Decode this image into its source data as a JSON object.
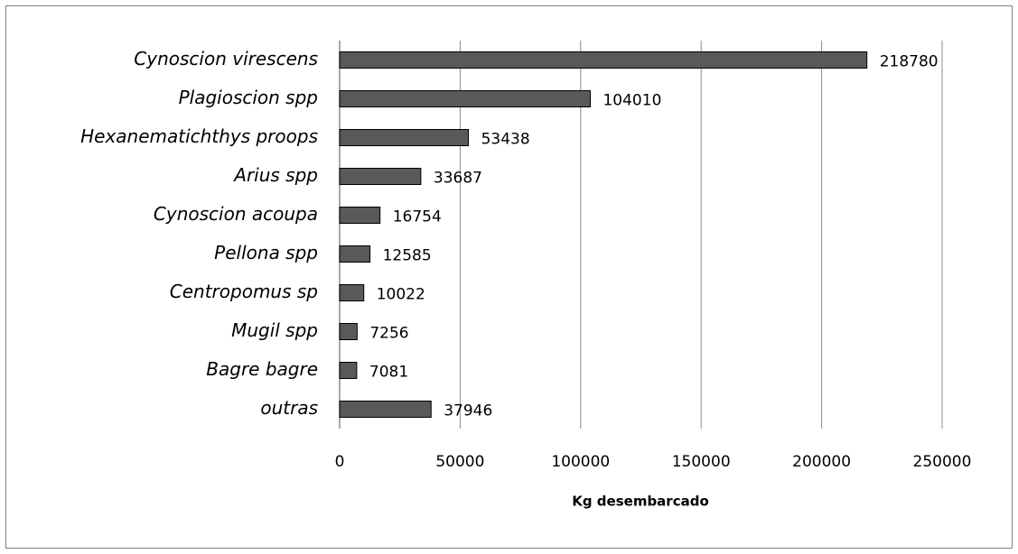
{
  "chart_data": {
    "type": "barh",
    "xlabel": "Kg desembarcado",
    "categories": [
      "Cynoscion virescens",
      "Plagioscion spp",
      "Hexanematichthys proops",
      "Arius spp",
      "Cynoscion acoupa",
      "Pellona spp",
      "Centropomus sp",
      "Mugil spp",
      "Bagre bagre",
      "outras"
    ],
    "values": [
      218780,
      104010,
      53438,
      33687,
      16754,
      12585,
      10022,
      7256,
      7081,
      37946
    ],
    "color": "#595959",
    "xlim": [
      0,
      250000
    ],
    "xticks": [
      0,
      50000,
      100000,
      150000,
      200000,
      250000
    ],
    "grid": true
  }
}
